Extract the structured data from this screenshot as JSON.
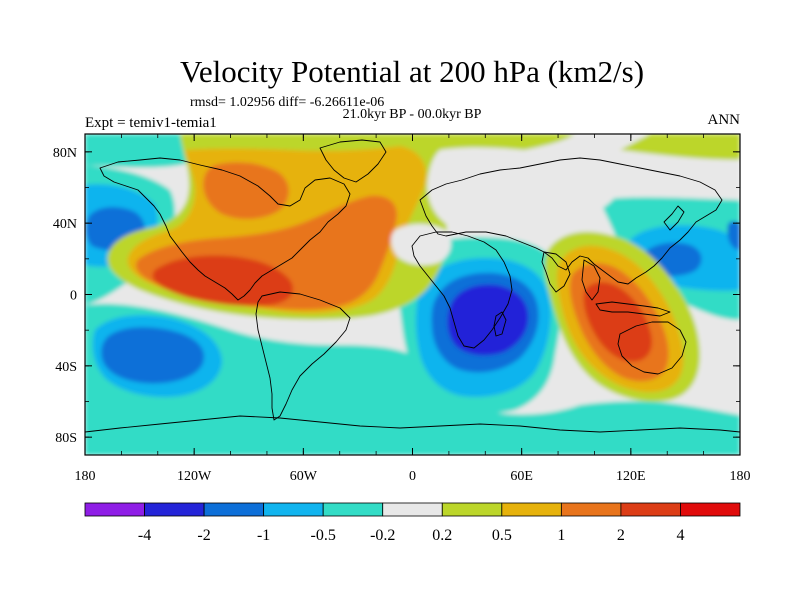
{
  "title": "Velocity Potential at 200 hPa (km2/s)",
  "stats": "rmsd= 1.02956 diff= -6.26611e-06",
  "period": "21.0kyr BP - 00.0kyr BP",
  "experiment": "Expt = temiv1-temia1",
  "season": "ANN",
  "chart_data": {
    "type": "heatmap",
    "variable": "Velocity Potential at 200 hPa",
    "units": "km2/s",
    "x_range": [
      -180,
      180
    ],
    "y_range": [
      -90,
      90
    ],
    "x_ticks": [
      {
        "value": -180,
        "label": "180"
      },
      {
        "value": -120,
        "label": "120W"
      },
      {
        "value": -60,
        "label": "60W"
      },
      {
        "value": 0,
        "label": "0"
      },
      {
        "value": 60,
        "label": "60E"
      },
      {
        "value": 120,
        "label": "120E"
      },
      {
        "value": 180,
        "label": "180"
      }
    ],
    "y_ticks": [
      {
        "value": 80,
        "label": "80N"
      },
      {
        "value": 40,
        "label": "40N"
      },
      {
        "value": 0,
        "label": "0"
      },
      {
        "value": -40,
        "label": "40S"
      },
      {
        "value": -80,
        "label": "80S"
      }
    ],
    "colorbar": {
      "labels": [
        "-4",
        "-2",
        "-1",
        "-0.5",
        "-0.2",
        "0.2",
        "0.5",
        "1",
        "2",
        "4"
      ],
      "colors": [
        "#8f1ee6",
        "#2424d8",
        "#0d6fd8",
        "#11b4ee",
        "#33dcc6",
        "#e8e8e8",
        "#bcd62a",
        "#e6b20c",
        "#e8741c",
        "#dc3d16",
        "#e00b0b"
      ]
    },
    "features": [
      {
        "name": "negative-centre-south-indian-ocean",
        "lon": 45,
        "lat": -10,
        "level": "< -4"
      },
      {
        "name": "negative-centre-north-pacific",
        "lon": -165,
        "lat": 38,
        "level": "-1 to -2"
      },
      {
        "name": "negative-centre-south-pacific",
        "lon": -150,
        "lat": -30,
        "level": "-1 to -2"
      },
      {
        "name": "negative-centre-west-pacific",
        "lon": 148,
        "lat": 22,
        "level": "-1 to -2"
      },
      {
        "name": "positive-centre-east-pacific",
        "lon": -115,
        "lat": 8,
        "level": "2 to 4"
      },
      {
        "name": "positive-centre-maritime-continent",
        "lon": 112,
        "lat": -10,
        "level": "2 to 4"
      },
      {
        "name": "positive-centre-north-atlantic",
        "lon": -48,
        "lat": 28,
        "level": "1 to 2"
      }
    ]
  }
}
